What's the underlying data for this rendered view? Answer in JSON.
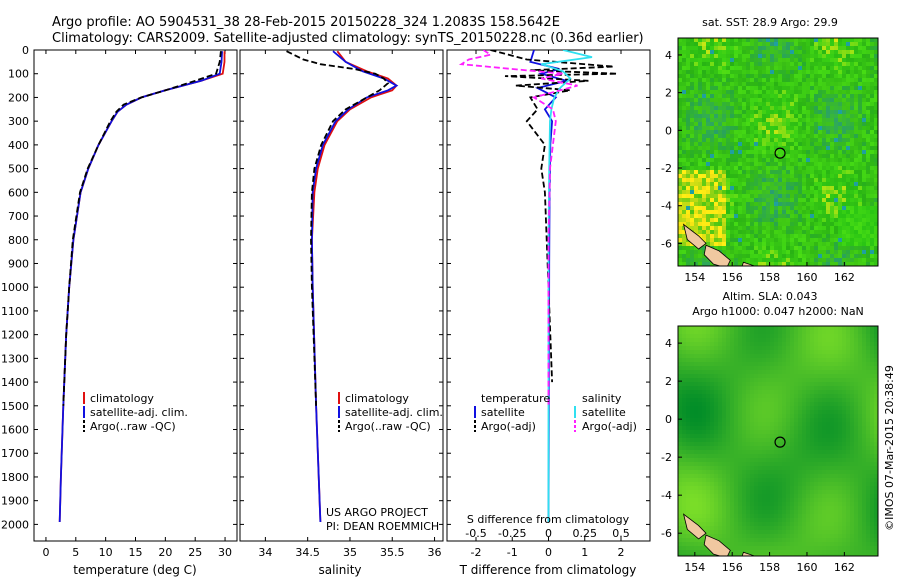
{
  "header": {
    "line1": "Argo profile: AO 5904531_38 28-Feb-2015 20150228_324 1.2083S 158.5642E",
    "line2": "Climatology: CARS2009. Satellite-adjusted climatology: synTS_20150228.nc (0.36d earlier)"
  },
  "colors": {
    "climatology": "#e01010",
    "satellite": "#1010e0",
    "argo": "#000000",
    "sal_satellite": "#30e0f0",
    "sal_argo": "#ff20ff"
  },
  "depth_axis": {
    "ticks": [
      0,
      100,
      200,
      300,
      400,
      500,
      600,
      700,
      800,
      900,
      1000,
      1100,
      1200,
      1300,
      1400,
      1500,
      1600,
      1700,
      1800,
      1900,
      2000
    ],
    "labels": [
      "0",
      "100",
      "200",
      "300",
      "400",
      "500",
      "600",
      "700",
      "800",
      "900",
      "1000",
      "1100",
      "1200",
      "1300",
      "1400",
      "1500",
      "1600",
      "1700",
      "1800",
      "1900",
      "2000"
    ]
  },
  "chart_data": [
    {
      "type": "line",
      "id": "temperature",
      "xlabel": "temperature (deg C)",
      "xlim": [
        -2,
        32
      ],
      "ylim": [
        2070,
        0
      ],
      "xticks": [
        0,
        5,
        10,
        15,
        20,
        25,
        30
      ],
      "xtick_labels": [
        "0",
        "5",
        "10",
        "15",
        "20",
        "25",
        "30"
      ],
      "legend": [
        "climatology",
        "satellite-adj. clim.",
        "Argo(..raw -QC)"
      ],
      "series": [
        {
          "name": "climatology",
          "depth": [
            5,
            50,
            100,
            130,
            170,
            200,
            230,
            260,
            300,
            400,
            500,
            600,
            800,
            1000,
            1200,
            1500,
            1800,
            1990
          ],
          "values": [
            29.9,
            29.9,
            29.6,
            26,
            20,
            16,
            13.5,
            12,
            11,
            8.8,
            7.1,
            5.8,
            4.6,
            3.9,
            3.4,
            2.9,
            2.5,
            2.3
          ]
        },
        {
          "name": "satellite-adj. clim.",
          "depth": [
            5,
            50,
            100,
            130,
            170,
            200,
            230,
            260,
            300,
            400,
            500,
            600,
            800,
            1000,
            1200,
            1500,
            1800,
            1990
          ],
          "values": [
            29.5,
            29.4,
            29.1,
            26,
            20,
            16,
            13.5,
            12,
            11,
            8.8,
            7.1,
            5.8,
            4.6,
            3.9,
            3.4,
            2.9,
            2.5,
            2.3
          ]
        },
        {
          "name": "Argo(..raw -QC)",
          "depth": [
            5,
            50,
            100,
            130,
            170,
            200,
            230,
            260,
            300,
            400,
            500,
            600,
            800,
            1000,
            1200,
            1500
          ],
          "values": [
            29.3,
            29.1,
            28.5,
            25,
            20,
            16,
            13,
            11.8,
            10.8,
            8.8,
            7,
            5.7,
            4.5,
            3.9,
            3.4,
            2.9
          ]
        }
      ]
    },
    {
      "type": "line",
      "id": "salinity",
      "xlabel": "salinity",
      "xlim": [
        33.7,
        36.1
      ],
      "ylim": [
        2070,
        0
      ],
      "xticks": [
        34,
        34.5,
        35,
        35.5,
        36
      ],
      "xtick_labels": [
        "34",
        "34.5",
        "35",
        "35.5",
        "36"
      ],
      "legend": [
        "climatology",
        "satellite-adj. clim.",
        "Argo(..raw -QC)"
      ],
      "series": [
        {
          "name": "climatology",
          "depth": [
            5,
            50,
            90,
            120,
            150,
            170,
            200,
            250,
            300,
            400,
            500,
            600,
            800,
            1000,
            1500,
            1990
          ],
          "values": [
            34.85,
            34.95,
            35.2,
            35.45,
            35.55,
            35.5,
            35.25,
            35,
            34.85,
            34.7,
            34.62,
            34.58,
            34.55,
            34.56,
            34.6,
            34.65
          ]
        },
        {
          "name": "satellite-adj. clim.",
          "depth": [
            5,
            50,
            90,
            120,
            150,
            170,
            200,
            250,
            300,
            400,
            500,
            600,
            800,
            1000,
            1500,
            1990
          ],
          "values": [
            34.8,
            34.95,
            35.15,
            35.4,
            35.55,
            35.45,
            35.2,
            34.98,
            34.83,
            34.68,
            34.6,
            34.56,
            34.55,
            34.56,
            34.6,
            34.65
          ]
        },
        {
          "name": "Argo(..raw -QC)",
          "depth": [
            5,
            40,
            60,
            80,
            100,
            120,
            140,
            170,
            200,
            250,
            300,
            400,
            500,
            600,
            800,
            1000,
            1500
          ],
          "values": [
            34.25,
            34.45,
            34.65,
            35.05,
            35.3,
            35.4,
            35.45,
            35.35,
            35.2,
            34.95,
            34.8,
            34.66,
            34.58,
            34.55,
            34.54,
            34.55,
            34.6
          ]
        }
      ]
    },
    {
      "type": "line",
      "id": "difference",
      "xlabel": "T difference from climatology",
      "x2label": "S difference from climatology",
      "xlim": [
        -2.8,
        2.8
      ],
      "ylim": [
        2070,
        0
      ],
      "xticks": [
        -2,
        -1,
        0,
        1,
        2
      ],
      "xtick_labels": [
        "-2",
        "-1",
        "0",
        "1",
        "2"
      ],
      "x2ticks": [
        -0.5,
        -0.25,
        0,
        0.25,
        0.5
      ],
      "x2tick_labels": [
        "-0.5",
        "-0.25",
        "0",
        "0.25",
        "0.5"
      ],
      "legend_headers": [
        "temperature",
        "salinity"
      ],
      "legend": [
        "satellite",
        "Argo(-adj)",
        "satellite",
        "Argo(-adj)"
      ],
      "series": [
        {
          "name": "T satellite",
          "depth": [
            0,
            50,
            80,
            100,
            130,
            160,
            200,
            250,
            300,
            400,
            600,
            900,
            1500,
            1990
          ],
          "values": [
            -0.4,
            -0.5,
            0.3,
            -0.2,
            0.5,
            -0.3,
            0.2,
            -0.1,
            0.1,
            0.05,
            0.03,
            0.02,
            0.01,
            0
          ]
        },
        {
          "name": "T Argo(-adj)",
          "depth": [
            0,
            40,
            70,
            85,
            100,
            110,
            130,
            150,
            170,
            200,
            250,
            300,
            400,
            500,
            600,
            800,
            1000,
            1400
          ],
          "values": [
            -1.6,
            -0.6,
            1.8,
            -0.5,
            1.9,
            -1.2,
            1.1,
            -0.9,
            0.6,
            -0.5,
            -0.3,
            -0.6,
            -0.1,
            -0.2,
            -0.1,
            -0.05,
            0,
            0.1
          ]
        },
        {
          "name": "S satellite",
          "depth": [
            0,
            30,
            60,
            90,
            120,
            160,
            200,
            250,
            300,
            500,
            800,
            1200,
            1990
          ],
          "values": [
            0.1,
            0.3,
            -0.05,
            0.1,
            0.15,
            0.08,
            0.04,
            0.02,
            0.01,
            0.005,
            0,
            0,
            0
          ]
        },
        {
          "name": "S Argo(-adj)",
          "depth": [
            0,
            20,
            40,
            60,
            80,
            100,
            120,
            150,
            200,
            250,
            300,
            500,
            800,
            1500
          ],
          "values": [
            -0.45,
            -0.4,
            -0.55,
            -0.6,
            -0.25,
            0.1,
            -0.05,
            0.2,
            -0.1,
            0.03,
            0.05,
            0.01,
            0,
            0
          ]
        }
      ]
    }
  ],
  "project": {
    "line1": "US ARGO PROJECT",
    "line2": "PI: DEAN ROEMMICH"
  },
  "maps": [
    {
      "title": "sat. SST: 28.9 Argo: 29.9",
      "xtick_labels": [
        "154",
        "156",
        "158",
        "160",
        "162"
      ],
      "ytick_labels": [
        "4",
        "2",
        "0",
        "-2",
        "-4",
        "-6"
      ],
      "float_lon": 158.56,
      "float_lat": -1.21
    },
    {
      "title_line1": "Altim. SLA: 0.043",
      "title_line2": "Argo h1000: 0.047 h2000: NaN",
      "xtick_labels": [
        "154",
        "156",
        "158",
        "160",
        "162"
      ],
      "ytick_labels": [
        "4",
        "2",
        "0",
        "-2",
        "-4",
        "-6"
      ],
      "float_lon": 158.56,
      "float_lat": -1.21
    }
  ],
  "credit": "©IMOS 07-Mar-2015 20:38:49"
}
